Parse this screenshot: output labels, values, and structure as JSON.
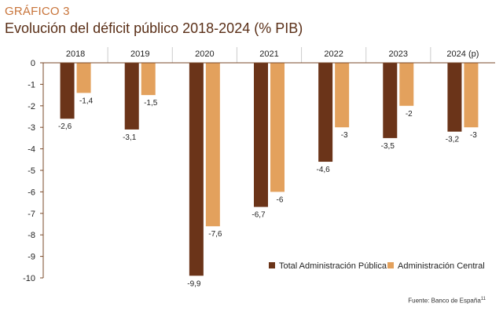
{
  "header": {
    "kicker": "GRÁFICO 3",
    "title": "Evolución del déficit público 2018-2024",
    "title_unit": "(% PIB)"
  },
  "source": {
    "text": "Fuente: Banco de España",
    "footnote": "11"
  },
  "colors": {
    "total": "#6b3419",
    "central": "#e3a15d",
    "axis": "#7a4a2a",
    "grid": "#cccccc"
  },
  "chart_data": {
    "type": "bar",
    "title": "Evolución del déficit público 2018-2024 (% PIB)",
    "categories": [
      "2018",
      "2019",
      "2020",
      "2021",
      "2022",
      "2023",
      "2024 (p)"
    ],
    "series": [
      {
        "name": "Total Administración Pública",
        "values": [
          -2.6,
          -3.1,
          -9.9,
          -6.7,
          -4.6,
          -3.5,
          -3.2
        ],
        "labels": [
          "-2,6",
          "-3,1",
          "-9,9",
          "-6,7",
          "-4,6",
          "-3,5",
          "-3,2"
        ]
      },
      {
        "name": "Administración Central",
        "values": [
          -1.4,
          -1.5,
          -7.6,
          -6,
          -3,
          -2,
          -3
        ],
        "labels": [
          "-1,4",
          "-1,5",
          "-7,6",
          "-6",
          "-3",
          "-2",
          "-3"
        ]
      }
    ],
    "y_ticks": [
      0,
      -1,
      -2,
      -3,
      -4,
      -5,
      -6,
      -7,
      -8,
      -9,
      -10
    ],
    "ylim": [
      -10,
      0
    ],
    "legend_position": "bottom-right",
    "category_axis_position": "top"
  }
}
